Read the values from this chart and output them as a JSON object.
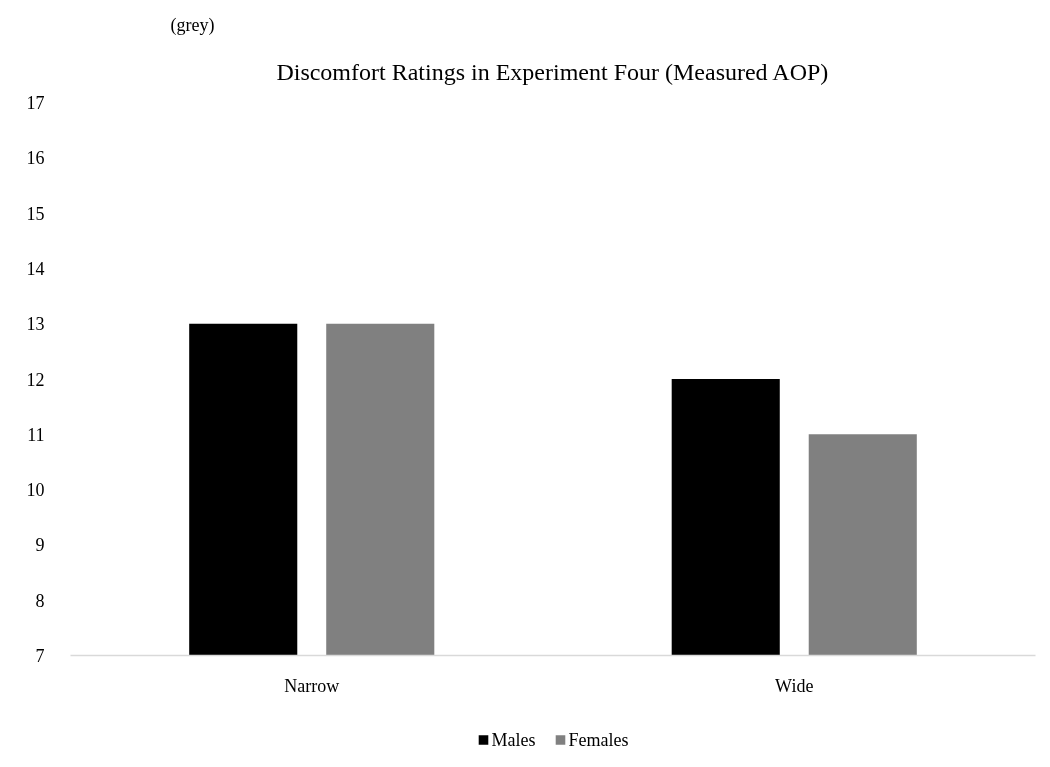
{
  "chart_data": {
    "type": "bar",
    "title": "Discomfort Ratings in Experiment Four (Measured AOP)",
    "annotations": [
      "(grey)"
    ],
    "categories": [
      "Narrow",
      "Wide"
    ],
    "series": [
      {
        "name": "Males",
        "color": "#000000",
        "values": [
          13,
          12
        ]
      },
      {
        "name": "Females",
        "color": "#808080",
        "values": [
          13,
          11
        ]
      }
    ],
    "ylim": [
      7,
      17
    ],
    "yticks": [
      7,
      8,
      9,
      10,
      11,
      12,
      13,
      14,
      15,
      16,
      17
    ],
    "legend": "bottom"
  }
}
